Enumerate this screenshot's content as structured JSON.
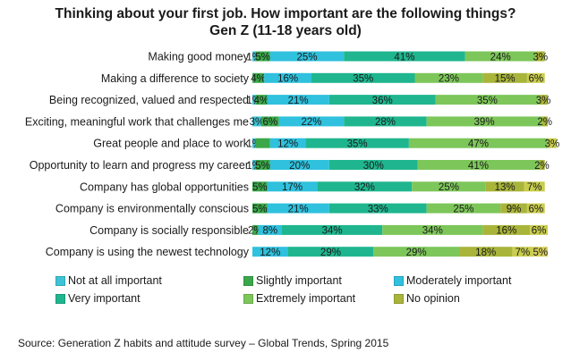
{
  "chart_data": {
    "type": "bar",
    "orientation": "horizontal",
    "stacked": true,
    "title": "Thinking about your first job. How important are the following things?",
    "subtitle": "Gen Z (11-18 years old)",
    "categories": [
      "Making good money",
      "Making a difference to society",
      "Being recognized, valued and respected",
      "Exciting, meaningful work that challenges me",
      "Great people and place to work",
      "Opportunity to learn and progress my career",
      "Company has global opportunities",
      "Company is environmentally conscious",
      "Company is socially responsible",
      "Company is using the newest technology"
    ],
    "series": [
      {
        "name": "Not at all important",
        "color": "#3ec3d6",
        "values": [
          1,
          0,
          1,
          3,
          1,
          1,
          0,
          0,
          0,
          0
        ],
        "labels": [
          "1%",
          "",
          "1%",
          "3%",
          "1%",
          "1%",
          "",
          "",
          "",
          ""
        ]
      },
      {
        "name": "Slightly important",
        "color": "#3aa84a",
        "values": [
          5,
          4,
          4,
          6,
          5,
          5,
          5,
          5,
          2,
          0
        ],
        "labels": [
          "5%",
          "4%",
          "4%",
          "6%",
          "",
          "5%",
          "5%",
          "5%",
          "2%",
          ""
        ]
      },
      {
        "name": "Moderately important",
        "color": "#2fc1dd",
        "values": [
          25,
          16,
          21,
          22,
          12,
          20,
          17,
          21,
          8,
          12
        ],
        "labels": [
          "25%",
          "16%",
          "21%",
          "22%",
          "12%",
          "20%",
          "17%",
          "21%",
          "8%",
          "12%"
        ]
      },
      {
        "name": "Very important",
        "color": "#1fb68f",
        "values": [
          41,
          35,
          36,
          28,
          35,
          30,
          32,
          33,
          34,
          29
        ],
        "labels": [
          "41%",
          "35%",
          "36%",
          "28%",
          "35%",
          "30%",
          "32%",
          "33%",
          "34%",
          "29%"
        ]
      },
      {
        "name": "Extremely important",
        "color": "#7dc65a",
        "values": [
          24,
          23,
          35,
          39,
          47,
          41,
          25,
          25,
          34,
          29
        ],
        "labels": [
          "24%",
          "23%",
          "35%",
          "39%",
          "47%",
          "41%",
          "25%",
          "25%",
          "34%",
          "29%"
        ]
      },
      {
        "name": "No opinion",
        "color": "#a9b53a",
        "values": [
          3,
          15,
          3,
          2,
          0,
          2,
          13,
          9,
          16,
          18
        ],
        "labels": [
          "3%",
          "15%",
          "3%",
          "2%",
          "",
          "2%",
          "13%",
          "9%",
          "16%",
          "18%"
        ]
      },
      {
        "name": "",
        "color": "#c9cd4e",
        "values": [
          0,
          6,
          0,
          0,
          3,
          0,
          7,
          6,
          6,
          7
        ],
        "labels": [
          "",
          "6%",
          "",
          "",
          "3%",
          "",
          "7%",
          "6%",
          "6%",
          "7%"
        ]
      },
      {
        "name": "",
        "color": "#d8cf5c",
        "values": [
          0,
          0,
          0,
          0,
          0,
          0,
          0,
          0,
          0,
          5
        ],
        "labels": [
          "",
          "",
          "",
          "",
          "",
          "",
          "",
          "",
          "",
          "5%"
        ]
      }
    ],
    "legend_order": [
      0,
      1,
      2,
      3,
      4,
      5
    ],
    "legend_placement": "bottom",
    "xlim": [
      0,
      100
    ],
    "grid": false
  },
  "source": "Source:  Generation Z habits and attitude survey – Global Trends, Spring 2015"
}
